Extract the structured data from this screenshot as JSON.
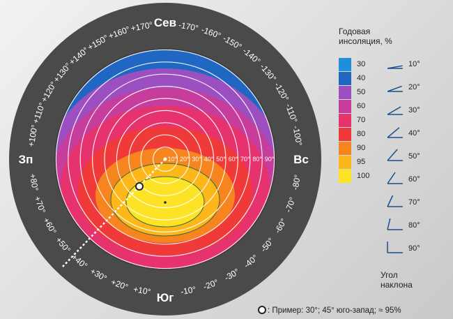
{
  "compass": {
    "north": "Сев",
    "south": "Юг",
    "west": "Зп",
    "east": "Вс",
    "left_labels": [
      "+10°",
      "+20°",
      "+30°",
      "+40°",
      "+50°",
      "+60°",
      "+70°",
      "+80°",
      "+100°",
      "+110°",
      "+120°",
      "+130°",
      "+140°",
      "+150°",
      "+160°",
      "+170°"
    ],
    "left_angles": [
      10,
      20,
      30,
      40,
      50,
      60,
      70,
      80,
      100,
      110,
      120,
      130,
      140,
      150,
      160,
      170
    ],
    "right_labels": [
      "-10°",
      "-20°",
      "-30°",
      "-40°",
      "-50°",
      "-60°",
      "-70°",
      "-80°",
      "-100°",
      "-110°",
      "-120°",
      "-130°",
      "-140°",
      "-150°",
      "-160°",
      "-170°"
    ],
    "right_angles": [
      10,
      20,
      30,
      40,
      50,
      60,
      70,
      80,
      100,
      110,
      120,
      130,
      140,
      150,
      160,
      170
    ]
  },
  "tilt_scale": {
    "labels": [
      "10°",
      "20°",
      "30°",
      "40°",
      "50°",
      "60°",
      "70°",
      "80°",
      "90°"
    ],
    "values": [
      10,
      20,
      30,
      40,
      50,
      60,
      70,
      80,
      90
    ]
  },
  "legend": {
    "title_line1": "Годовая",
    "title_line2": "инсоляция, %",
    "items": [
      {
        "label": "30",
        "color": "#1e8fd9"
      },
      {
        "label": "40",
        "color": "#1f67c2"
      },
      {
        "label": "50",
        "color": "#9b4fc0"
      },
      {
        "label": "60",
        "color": "#c73d9b"
      },
      {
        "label": "70",
        "color": "#e6336e"
      },
      {
        "label": "80",
        "color": "#f03a3a"
      },
      {
        "label": "90",
        "color": "#f7851f"
      },
      {
        "label": "95",
        "color": "#fdb71a"
      },
      {
        "label": "100",
        "color": "#fde326"
      }
    ]
  },
  "tilt_icons": {
    "labels": [
      "10°",
      "20°",
      "30°",
      "40°",
      "50°",
      "60°",
      "70°",
      "80°",
      "90°"
    ],
    "values": [
      10,
      20,
      30,
      40,
      50,
      60,
      70,
      80,
      90
    ],
    "title_line1": "Угол",
    "title_line2": "наклона"
  },
  "example": {
    "text": ": Пример: 30°; 45° юго-запад; ≈ 95%",
    "tilt": 30,
    "azimuth": 45
  }
}
